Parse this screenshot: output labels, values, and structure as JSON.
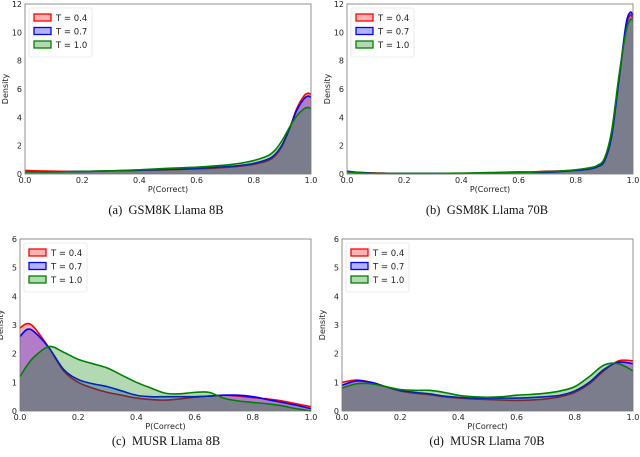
{
  "colors": {
    "T = 0.4": "#ff0000",
    "T = 0.7": "#0000ff",
    "T = 1.0": "#008000"
  },
  "chart_data": [
    {
      "type": "area",
      "caption": "(a)  GSM8K Llama 8B",
      "xlabel": "P(Correct)",
      "ylabel": "Density",
      "xlim": [
        0,
        1
      ],
      "ylim": [
        0,
        12
      ],
      "xticks": [
        "0.0",
        "0.2",
        "0.4",
        "0.6",
        "0.8",
        "1.0"
      ],
      "yticks": [
        "0",
        "2",
        "4",
        "6",
        "8",
        "10",
        "12"
      ],
      "legend": "top-left",
      "grid": false,
      "x": [
        0,
        0.05,
        0.1,
        0.15,
        0.2,
        0.25,
        0.3,
        0.35,
        0.4,
        0.45,
        0.5,
        0.55,
        0.6,
        0.65,
        0.7,
        0.75,
        0.8,
        0.85,
        0.875,
        0.9,
        0.925,
        0.95,
        0.975,
        0.99,
        1.0
      ],
      "series": [
        {
          "name": "T = 0.4",
          "values": [
            0.25,
            0.22,
            0.2,
            0.18,
            0.18,
            0.2,
            0.22,
            0.24,
            0.26,
            0.28,
            0.3,
            0.33,
            0.36,
            0.4,
            0.46,
            0.55,
            0.68,
            0.95,
            1.3,
            2.0,
            3.2,
            4.6,
            5.5,
            5.7,
            5.6
          ]
        },
        {
          "name": "T = 0.7",
          "values": [
            0.15,
            0.15,
            0.15,
            0.16,
            0.18,
            0.2,
            0.22,
            0.24,
            0.27,
            0.3,
            0.33,
            0.36,
            0.4,
            0.45,
            0.52,
            0.6,
            0.75,
            1.05,
            1.4,
            2.1,
            3.2,
            4.5,
            5.3,
            5.5,
            5.4
          ]
        },
        {
          "name": "T = 1.0",
          "values": [
            0.15,
            0.15,
            0.15,
            0.16,
            0.18,
            0.2,
            0.23,
            0.26,
            0.3,
            0.35,
            0.4,
            0.44,
            0.48,
            0.55,
            0.63,
            0.75,
            0.95,
            1.3,
            1.7,
            2.4,
            3.3,
            4.1,
            4.6,
            4.7,
            4.6
          ]
        }
      ]
    },
    {
      "type": "area",
      "caption": "(b)  GSM8K Llama 70B",
      "xlabel": "P(Correct)",
      "ylabel": "Density",
      "xlim": [
        0,
        1
      ],
      "ylim": [
        0,
        12
      ],
      "xticks": [
        "0.0",
        "0.2",
        "0.4",
        "0.6",
        "0.8",
        "1.0"
      ],
      "yticks": [
        "0",
        "2",
        "4",
        "6",
        "8",
        "10",
        "12"
      ],
      "legend": "top-left",
      "grid": false,
      "x": [
        0,
        0.05,
        0.1,
        0.15,
        0.2,
        0.25,
        0.3,
        0.35,
        0.4,
        0.45,
        0.5,
        0.55,
        0.6,
        0.65,
        0.7,
        0.75,
        0.8,
        0.85,
        0.875,
        0.9,
        0.925,
        0.95,
        0.975,
        0.99,
        1.0
      ],
      "series": [
        {
          "name": "T = 0.4",
          "values": [
            0.15,
            0.1,
            0.08,
            0.05,
            0.04,
            0.04,
            0.04,
            0.04,
            0.05,
            0.06,
            0.08,
            0.1,
            0.12,
            0.15,
            0.2,
            0.22,
            0.28,
            0.4,
            0.55,
            1.0,
            2.8,
            6.5,
            10.3,
            11.2,
            11.0
          ]
        },
        {
          "name": "T = 0.7",
          "values": [
            0.2,
            0.1,
            0.05,
            0.04,
            0.04,
            0.04,
            0.04,
            0.05,
            0.05,
            0.06,
            0.08,
            0.12,
            0.15,
            0.12,
            0.12,
            0.18,
            0.25,
            0.35,
            0.5,
            0.9,
            2.6,
            6.5,
            10.5,
            11.4,
            11.2
          ]
        },
        {
          "name": "T = 1.0",
          "values": [
            0.15,
            0.08,
            0.05,
            0.04,
            0.04,
            0.04,
            0.04,
            0.05,
            0.06,
            0.08,
            0.1,
            0.11,
            0.12,
            0.14,
            0.18,
            0.22,
            0.3,
            0.45,
            0.6,
            1.1,
            3.0,
            6.8,
            10.0,
            10.9,
            10.8
          ]
        }
      ]
    },
    {
      "type": "area",
      "caption": "(c)  MUSR Llama 8B",
      "xlabel": "P(Correct)",
      "ylabel": "Density",
      "xlim": [
        0,
        1
      ],
      "ylim": [
        0,
        6
      ],
      "xticks": [
        "0.0",
        "0.2",
        "0.4",
        "0.6",
        "0.8",
        "1.0"
      ],
      "yticks": [
        "0",
        "1",
        "2",
        "3",
        "4",
        "5",
        "6"
      ],
      "legend": "top-left",
      "grid": false,
      "x": [
        0,
        0.025,
        0.05,
        0.1,
        0.15,
        0.2,
        0.25,
        0.3,
        0.35,
        0.4,
        0.45,
        0.5,
        0.55,
        0.6,
        0.65,
        0.7,
        0.75,
        0.8,
        0.85,
        0.9,
        0.95,
        1.0
      ],
      "series": [
        {
          "name": "T = 0.4",
          "values": [
            2.9,
            3.05,
            2.9,
            2.2,
            1.4,
            1.0,
            0.8,
            0.65,
            0.55,
            0.45,
            0.4,
            0.38,
            0.42,
            0.48,
            0.52,
            0.55,
            0.52,
            0.47,
            0.42,
            0.35,
            0.25,
            0.15
          ]
        },
        {
          "name": "T = 0.7",
          "values": [
            2.6,
            2.85,
            2.75,
            2.2,
            1.45,
            1.1,
            0.95,
            0.85,
            0.7,
            0.55,
            0.5,
            0.5,
            0.5,
            0.5,
            0.52,
            0.55,
            0.55,
            0.5,
            0.4,
            0.3,
            0.2,
            0.08
          ]
        },
        {
          "name": "T = 1.0",
          "values": [
            1.2,
            1.6,
            1.9,
            2.25,
            2.05,
            1.8,
            1.65,
            1.5,
            1.25,
            1.0,
            0.8,
            0.62,
            0.6,
            0.65,
            0.65,
            0.45,
            0.35,
            0.3,
            0.25,
            0.18,
            0.08,
            0.0
          ]
        }
      ]
    },
    {
      "type": "area",
      "caption": "(d)  MUSR Llama 70B",
      "xlabel": "P(Correct)",
      "ylabel": "Density",
      "xlim": [
        0,
        1
      ],
      "ylim": [
        0,
        6
      ],
      "xticks": [
        "0.0",
        "0.2",
        "0.4",
        "0.6",
        "0.8",
        "1.0"
      ],
      "yticks": [
        "0",
        "1",
        "2",
        "3",
        "4",
        "5",
        "6"
      ],
      "legend": "top-left",
      "grid": false,
      "x": [
        0,
        0.05,
        0.1,
        0.15,
        0.2,
        0.25,
        0.3,
        0.35,
        0.4,
        0.45,
        0.5,
        0.55,
        0.6,
        0.65,
        0.7,
        0.75,
        0.8,
        0.85,
        0.9,
        0.95,
        1.0
      ],
      "series": [
        {
          "name": "T = 0.4",
          "values": [
            1.0,
            1.08,
            1.0,
            0.85,
            0.7,
            0.62,
            0.57,
            0.5,
            0.45,
            0.42,
            0.4,
            0.38,
            0.37,
            0.38,
            0.42,
            0.5,
            0.65,
            0.95,
            1.4,
            1.75,
            1.75
          ]
        },
        {
          "name": "T = 0.7",
          "values": [
            0.9,
            1.05,
            1.0,
            0.85,
            0.72,
            0.65,
            0.6,
            0.52,
            0.48,
            0.45,
            0.45,
            0.45,
            0.45,
            0.47,
            0.5,
            0.55,
            0.7,
            1.0,
            1.45,
            1.7,
            1.65
          ]
        },
        {
          "name": "T = 1.0",
          "values": [
            0.8,
            0.95,
            0.95,
            0.85,
            0.75,
            0.72,
            0.72,
            0.65,
            0.55,
            0.5,
            0.48,
            0.5,
            0.55,
            0.58,
            0.62,
            0.7,
            0.85,
            1.2,
            1.6,
            1.65,
            1.4
          ]
        }
      ]
    }
  ]
}
